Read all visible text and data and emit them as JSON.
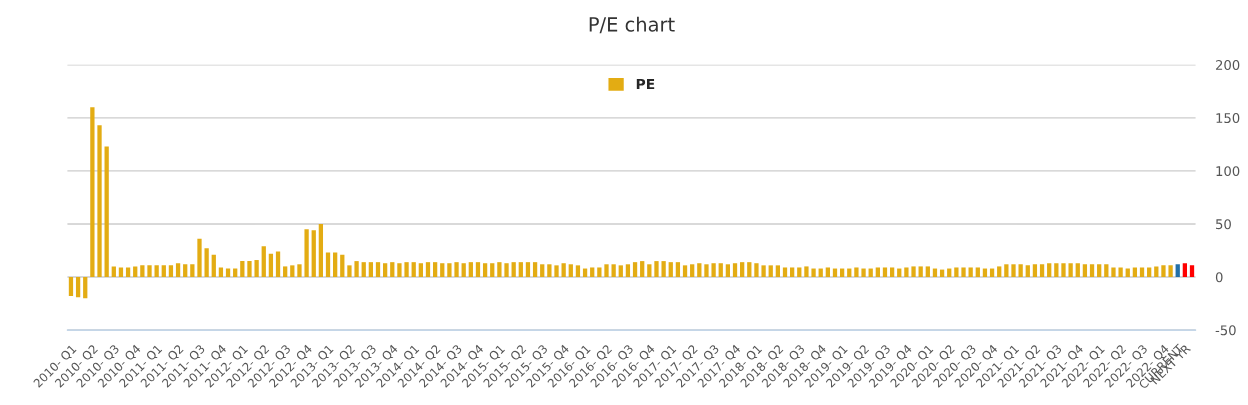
{
  "chart_data": {
    "type": "bar",
    "title": "P/E chart",
    "categories": [
      "2010- Q1",
      null,
      null,
      "2010- Q2",
      null,
      null,
      "2010- Q3",
      null,
      null,
      "2010- Q4",
      null,
      null,
      "2011- Q1",
      null,
      null,
      "2011- Q2",
      null,
      null,
      "2011- Q3",
      null,
      null,
      "2011- Q4",
      null,
      null,
      "2012- Q1",
      null,
      null,
      "2012- Q2",
      null,
      null,
      "2012- Q3",
      null,
      null,
      "2012- Q4",
      null,
      null,
      "2013- Q1",
      null,
      null,
      "2013- Q2",
      null,
      null,
      "2013- Q3",
      null,
      null,
      "2013- Q4",
      null,
      null,
      "2014- Q1",
      null,
      null,
      "2014- Q2",
      null,
      null,
      "2014- Q3",
      null,
      null,
      "2014- Q4",
      null,
      null,
      "2015- Q1",
      null,
      null,
      "2015- Q2",
      null,
      null,
      "2015- Q3",
      null,
      null,
      "2015- Q4",
      null,
      null,
      "2016- Q1",
      null,
      null,
      "2016- Q2",
      null,
      null,
      "2016- Q3",
      null,
      null,
      "2016- Q4",
      null,
      null,
      "2017- Q1",
      null,
      null,
      "2017- Q2",
      null,
      null,
      "2017- Q3",
      null,
      null,
      "2017- Q4",
      null,
      null,
      "2018- Q1",
      null,
      null,
      "2018- Q2",
      null,
      null,
      "2018- Q3",
      null,
      null,
      "2018- Q4",
      null,
      null,
      "2019- Q1",
      null,
      null,
      "2019- Q2",
      null,
      null,
      "2019- Q3",
      null,
      null,
      "2019- Q4",
      null,
      null,
      "2020- Q1",
      null,
      null,
      "2020- Q2",
      null,
      null,
      "2020- Q3",
      null,
      null,
      "2020- Q4",
      null,
      null,
      "2021- Q1",
      null,
      null,
      "2021- Q2",
      null,
      null,
      "2021- Q3",
      null,
      null,
      "2021- Q4",
      null,
      null,
      "2022- Q1",
      null,
      null,
      "2022- Q2",
      null,
      null,
      "2022- Q3",
      null,
      null,
      "2022- Q4",
      null,
      "CURRENT",
      "NEXT YR",
      null
    ],
    "series": [
      {
        "name": "PE",
        "color": "#e3ac13",
        "values": [
          -18,
          -19,
          -20,
          160,
          143,
          123,
          10,
          9,
          9,
          10,
          11,
          11,
          11,
          11,
          11,
          13,
          12,
          12,
          36,
          27,
          21,
          9,
          8,
          8,
          15,
          15,
          16,
          29,
          22,
          24,
          10,
          11,
          12,
          45,
          44,
          50,
          23,
          23,
          21,
          11,
          15,
          14,
          14,
          14,
          13,
          14,
          13,
          14,
          14,
          13,
          14,
          14,
          13,
          13,
          14,
          13,
          14,
          14,
          13,
          13,
          14,
          13,
          14,
          14,
          14,
          14,
          12,
          12,
          11,
          13,
          12,
          11,
          8,
          9,
          9,
          12,
          12,
          11,
          12,
          14,
          15,
          12,
          15,
          15,
          14,
          14,
          11,
          12,
          13,
          12,
          13,
          13,
          12,
          13,
          14,
          14,
          13,
          11,
          11,
          11,
          9,
          9,
          9,
          10,
          8,
          8,
          9,
          8,
          8,
          8,
          9,
          8,
          8,
          9,
          9,
          9,
          8,
          9,
          10,
          10,
          10,
          8,
          7,
          8,
          9,
          9,
          9,
          9,
          8,
          8,
          10,
          12,
          12,
          12,
          11,
          12,
          12,
          13,
          13,
          13,
          13,
          13,
          12,
          12,
          12,
          12,
          9,
          9,
          8,
          9,
          9,
          9,
          10,
          11,
          11,
          12,
          13,
          11
        ],
        "colors": [
          "#e3ac13",
          "#e3ac13",
          "#e3ac13",
          "#e3ac13",
          "#e3ac13",
          "#e3ac13",
          "#e3ac13",
          "#e3ac13",
          "#e3ac13",
          "#e3ac13",
          "#e3ac13",
          "#e3ac13",
          "#e3ac13",
          "#e3ac13",
          "#e3ac13",
          "#e3ac13",
          "#e3ac13",
          "#e3ac13",
          "#e3ac13",
          "#e3ac13",
          "#e3ac13",
          "#e3ac13",
          "#e3ac13",
          "#e3ac13",
          "#e3ac13",
          "#e3ac13",
          "#e3ac13",
          "#e3ac13",
          "#e3ac13",
          "#e3ac13",
          "#e3ac13",
          "#e3ac13",
          "#e3ac13",
          "#e3ac13",
          "#e3ac13",
          "#e3ac13",
          "#e3ac13",
          "#e3ac13",
          "#e3ac13",
          "#e3ac13",
          "#e3ac13",
          "#e3ac13",
          "#e3ac13",
          "#e3ac13",
          "#e3ac13",
          "#e3ac13",
          "#e3ac13",
          "#e3ac13",
          "#e3ac13",
          "#e3ac13",
          "#e3ac13",
          "#e3ac13",
          "#e3ac13",
          "#e3ac13",
          "#e3ac13",
          "#e3ac13",
          "#e3ac13",
          "#e3ac13",
          "#e3ac13",
          "#e3ac13",
          "#e3ac13",
          "#e3ac13",
          "#e3ac13",
          "#e3ac13",
          "#e3ac13",
          "#e3ac13",
          "#e3ac13",
          "#e3ac13",
          "#e3ac13",
          "#e3ac13",
          "#e3ac13",
          "#e3ac13",
          "#e3ac13",
          "#e3ac13",
          "#e3ac13",
          "#e3ac13",
          "#e3ac13",
          "#e3ac13",
          "#e3ac13",
          "#e3ac13",
          "#e3ac13",
          "#e3ac13",
          "#e3ac13",
          "#e3ac13",
          "#e3ac13",
          "#e3ac13",
          "#e3ac13",
          "#e3ac13",
          "#e3ac13",
          "#e3ac13",
          "#e3ac13",
          "#e3ac13",
          "#e3ac13",
          "#e3ac13",
          "#e3ac13",
          "#e3ac13",
          "#e3ac13",
          "#e3ac13",
          "#e3ac13",
          "#e3ac13",
          "#e3ac13",
          "#e3ac13",
          "#e3ac13",
          "#e3ac13",
          "#e3ac13",
          "#e3ac13",
          "#e3ac13",
          "#e3ac13",
          "#e3ac13",
          "#e3ac13",
          "#e3ac13",
          "#e3ac13",
          "#e3ac13",
          "#e3ac13",
          "#e3ac13",
          "#e3ac13",
          "#e3ac13",
          "#e3ac13",
          "#e3ac13",
          "#e3ac13",
          "#e3ac13",
          "#e3ac13",
          "#e3ac13",
          "#e3ac13",
          "#e3ac13",
          "#e3ac13",
          "#e3ac13",
          "#e3ac13",
          "#e3ac13",
          "#e3ac13",
          "#e3ac13",
          "#e3ac13",
          "#e3ac13",
          "#e3ac13",
          "#e3ac13",
          "#e3ac13",
          "#e3ac13",
          "#e3ac13",
          "#e3ac13",
          "#e3ac13",
          "#e3ac13",
          "#e3ac13",
          "#e3ac13",
          "#e3ac13",
          "#e3ac13",
          "#e3ac13",
          "#e3ac13",
          "#e3ac13",
          "#e3ac13",
          "#e3ac13",
          "#e3ac13",
          "#e3ac13",
          "#e3ac13",
          "#e3ac13",
          "#e3ac13",
          "#2470a8",
          "#ff0000",
          "#ff0000"
        ]
      }
    ],
    "ylim": [
      -50,
      200
    ],
    "yticks": [
      -50,
      0,
      50,
      100,
      150,
      200
    ],
    "grid": "y",
    "legend": "top"
  }
}
